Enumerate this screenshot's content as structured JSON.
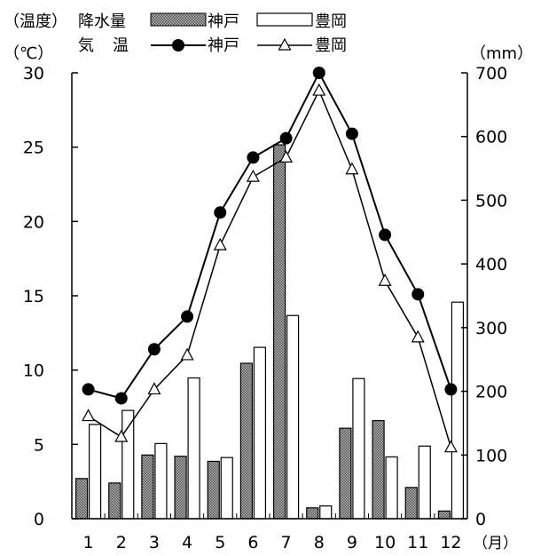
{
  "chart_data": {
    "type": "bar+line",
    "categories": [
      "1",
      "2",
      "3",
      "4",
      "5",
      "6",
      "7",
      "8",
      "9",
      "10",
      "11",
      "12"
    ],
    "x_unit_label": "（月）",
    "left_axis": {
      "title_line1": "（温度）",
      "unit": "（℃）",
      "ylim": [
        0,
        30
      ],
      "ticks": [
        "0",
        "5",
        "10",
        "15",
        "20",
        "25",
        "30"
      ]
    },
    "right_axis": {
      "unit": "（mm）",
      "ylim": [
        0,
        700
      ],
      "ticks": [
        "0",
        "100",
        "200",
        "300",
        "400",
        "500",
        "600",
        "700"
      ]
    },
    "bar_series": [
      {
        "name": "神戸",
        "axis": "right",
        "fill": "hatched",
        "values": [
          63,
          56,
          100,
          98,
          90,
          244,
          587,
          17,
          142,
          154,
          49,
          12
        ]
      },
      {
        "name": "豊岡",
        "axis": "right",
        "fill": "white",
        "values": [
          148,
          170,
          118,
          221,
          96,
          269,
          319,
          20,
          220,
          97,
          114,
          340
        ]
      }
    ],
    "line_series": [
      {
        "name": "神戸",
        "axis": "left",
        "marker": "filled-circle",
        "values": [
          8.7,
          8.1,
          11.4,
          13.6,
          20.6,
          24.3,
          25.6,
          30.0,
          25.9,
          19.1,
          15.1,
          8.7
        ]
      },
      {
        "name": "豊岡",
        "axis": "left",
        "marker": "open-triangle",
        "values": [
          6.9,
          5.5,
          8.7,
          11.0,
          18.4,
          23.0,
          24.3,
          28.8,
          23.5,
          16.0,
          12.2,
          4.8
        ]
      }
    ],
    "legend": {
      "bars_title": "降水量",
      "lines_title_chars": [
        "気",
        "温"
      ],
      "bar_items": [
        "神戸",
        "豊岡"
      ],
      "line_items": [
        "神戸",
        "豊岡"
      ]
    },
    "colors": {
      "axis": "#000000",
      "bar_hatched_bg": "#bdbdbd",
      "bar_hatched_dot": "#4a4a4a",
      "bar_white": "#ffffff",
      "line": "#000000"
    },
    "grid": false
  }
}
